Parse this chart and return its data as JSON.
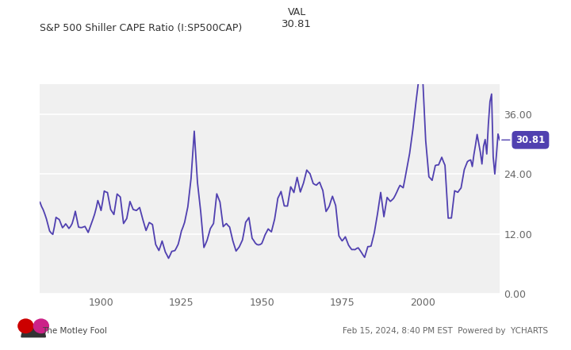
{
  "title_left": "S&P 500 Shiller CAPE Ratio (I:SP500CAP)",
  "title_val_label": "VAL",
  "title_val": "30.81",
  "line_color": "#5040B0",
  "label_color": "#5040B0",
  "background_color": "#ffffff",
  "plot_bg_color": "#f0f0f0",
  "grid_color": "#ffffff",
  "yticks": [
    0.0,
    12.0,
    24.0,
    36.0
  ],
  "ytick_labels": [
    "0.00",
    "12.00",
    "24.00",
    "36.00"
  ],
  "ylim": [
    0,
    42
  ],
  "xlim_start": 1881,
  "xlim_end": 2024,
  "xticks": [
    1900,
    1925,
    1950,
    1975,
    2000
  ],
  "last_value": 30.81,
  "cape_data": [
    [
      1881.0,
      18.36
    ],
    [
      1881.5,
      17.5
    ],
    [
      1882.0,
      16.86
    ],
    [
      1882.5,
      16.0
    ],
    [
      1883.0,
      15.04
    ],
    [
      1883.5,
      13.8
    ],
    [
      1884.0,
      12.6
    ],
    [
      1884.5,
      12.2
    ],
    [
      1885.0,
      11.93
    ],
    [
      1885.5,
      13.5
    ],
    [
      1886.0,
      15.33
    ],
    [
      1886.5,
      15.1
    ],
    [
      1887.0,
      14.9
    ],
    [
      1887.5,
      14.1
    ],
    [
      1888.0,
      13.26
    ],
    [
      1888.5,
      13.6
    ],
    [
      1889.0,
      14.04
    ],
    [
      1889.5,
      13.6
    ],
    [
      1890.0,
      13.11
    ],
    [
      1890.5,
      13.5
    ],
    [
      1891.0,
      14.08
    ],
    [
      1891.5,
      15.2
    ],
    [
      1892.0,
      16.55
    ],
    [
      1892.5,
      15.0
    ],
    [
      1893.0,
      13.39
    ],
    [
      1893.5,
      13.3
    ],
    [
      1894.0,
      13.29
    ],
    [
      1894.5,
      13.4
    ],
    [
      1895.0,
      13.52
    ],
    [
      1895.5,
      12.9
    ],
    [
      1896.0,
      12.31
    ],
    [
      1896.5,
      13.2
    ],
    [
      1897.0,
      14.08
    ],
    [
      1897.5,
      15.0
    ],
    [
      1898.0,
      15.97
    ],
    [
      1898.5,
      17.2
    ],
    [
      1899.0,
      18.7
    ],
    [
      1899.5,
      17.8
    ],
    [
      1900.0,
      16.7
    ],
    [
      1900.5,
      18.5
    ],
    [
      1901.0,
      20.6
    ],
    [
      1901.5,
      20.4
    ],
    [
      1902.0,
      20.3
    ],
    [
      1902.5,
      18.6
    ],
    [
      1903.0,
      16.9
    ],
    [
      1903.5,
      16.4
    ],
    [
      1904.0,
      15.9
    ],
    [
      1904.5,
      17.9
    ],
    [
      1905.0,
      20.0
    ],
    [
      1905.5,
      19.7
    ],
    [
      1906.0,
      19.4
    ],
    [
      1906.5,
      16.8
    ],
    [
      1907.0,
      14.1
    ],
    [
      1907.5,
      14.6
    ],
    [
      1908.0,
      15.1
    ],
    [
      1908.5,
      16.8
    ],
    [
      1909.0,
      18.5
    ],
    [
      1909.5,
      17.7
    ],
    [
      1910.0,
      16.9
    ],
    [
      1910.5,
      16.8
    ],
    [
      1911.0,
      16.7
    ],
    [
      1911.5,
      17.0
    ],
    [
      1912.0,
      17.3
    ],
    [
      1912.5,
      16.1
    ],
    [
      1913.0,
      14.9
    ],
    [
      1913.5,
      13.8
    ],
    [
      1914.0,
      12.7
    ],
    [
      1914.5,
      13.5
    ],
    [
      1915.0,
      14.3
    ],
    [
      1915.5,
      14.1
    ],
    [
      1916.0,
      13.9
    ],
    [
      1916.5,
      11.9
    ],
    [
      1917.0,
      9.9
    ],
    [
      1917.5,
      9.3
    ],
    [
      1918.0,
      8.7
    ],
    [
      1918.5,
      9.6
    ],
    [
      1919.0,
      10.6
    ],
    [
      1919.5,
      9.5
    ],
    [
      1920.0,
      8.4
    ],
    [
      1920.5,
      7.8
    ],
    [
      1921.0,
      7.14
    ],
    [
      1921.5,
      7.8
    ],
    [
      1922.0,
      8.53
    ],
    [
      1922.5,
      8.6
    ],
    [
      1923.0,
      8.7
    ],
    [
      1923.5,
      9.3
    ],
    [
      1924.0,
      9.95
    ],
    [
      1924.5,
      11.2
    ],
    [
      1925.0,
      12.59
    ],
    [
      1925.5,
      13.4
    ],
    [
      1926.0,
      14.34
    ],
    [
      1926.5,
      15.9
    ],
    [
      1927.0,
      17.45
    ],
    [
      1927.5,
      20.2
    ],
    [
      1928.0,
      23.1
    ],
    [
      1928.5,
      27.8
    ],
    [
      1929.0,
      32.56
    ],
    [
      1929.5,
      27.4
    ],
    [
      1930.0,
      22.3
    ],
    [
      1930.5,
      19.4
    ],
    [
      1931.0,
      16.5
    ],
    [
      1931.5,
      12.9
    ],
    [
      1932.0,
      9.3
    ],
    [
      1932.5,
      10.0
    ],
    [
      1933.0,
      10.77
    ],
    [
      1933.5,
      11.9
    ],
    [
      1934.0,
      13.07
    ],
    [
      1934.5,
      13.6
    ],
    [
      1935.0,
      14.11
    ],
    [
      1935.5,
      17.1
    ],
    [
      1936.0,
      20.04
    ],
    [
      1936.5,
      19.2
    ],
    [
      1937.0,
      18.4
    ],
    [
      1937.5,
      15.9
    ],
    [
      1938.0,
      13.47
    ],
    [
      1938.5,
      13.8
    ],
    [
      1939.0,
      14.09
    ],
    [
      1939.5,
      13.7
    ],
    [
      1940.0,
      13.39
    ],
    [
      1940.5,
      12.0
    ],
    [
      1941.0,
      10.64
    ],
    [
      1941.5,
      9.6
    ],
    [
      1942.0,
      8.59
    ],
    [
      1942.5,
      9.0
    ],
    [
      1943.0,
      9.42
    ],
    [
      1943.5,
      10.1
    ],
    [
      1944.0,
      10.81
    ],
    [
      1944.5,
      12.5
    ],
    [
      1945.0,
      14.36
    ],
    [
      1945.5,
      14.8
    ],
    [
      1946.0,
      15.29
    ],
    [
      1946.5,
      13.2
    ],
    [
      1947.0,
      11.14
    ],
    [
      1947.5,
      10.7
    ],
    [
      1948.0,
      10.18
    ],
    [
      1948.5,
      9.9
    ],
    [
      1949.0,
      9.82
    ],
    [
      1949.5,
      9.9
    ],
    [
      1950.0,
      10.1
    ],
    [
      1950.5,
      10.9
    ],
    [
      1951.0,
      11.79
    ],
    [
      1951.5,
      12.4
    ],
    [
      1952.0,
      13.02
    ],
    [
      1952.5,
      12.7
    ],
    [
      1953.0,
      12.44
    ],
    [
      1953.5,
      13.7
    ],
    [
      1954.0,
      14.97
    ],
    [
      1954.5,
      17.0
    ],
    [
      1955.0,
      19.15
    ],
    [
      1955.5,
      19.8
    ],
    [
      1956.0,
      20.51
    ],
    [
      1956.5,
      19.1
    ],
    [
      1957.0,
      17.62
    ],
    [
      1957.5,
      17.6
    ],
    [
      1958.0,
      17.59
    ],
    [
      1958.5,
      19.5
    ],
    [
      1959.0,
      21.44
    ],
    [
      1959.5,
      20.9
    ],
    [
      1960.0,
      20.29
    ],
    [
      1960.5,
      21.8
    ],
    [
      1961.0,
      23.33
    ],
    [
      1961.5,
      21.9
    ],
    [
      1962.0,
      20.4
    ],
    [
      1962.5,
      21.3
    ],
    [
      1963.0,
      22.22
    ],
    [
      1963.5,
      23.5
    ],
    [
      1964.0,
      24.79
    ],
    [
      1964.5,
      24.4
    ],
    [
      1965.0,
      24.07
    ],
    [
      1965.5,
      23.1
    ],
    [
      1966.0,
      22.11
    ],
    [
      1966.5,
      21.9
    ],
    [
      1967.0,
      21.77
    ],
    [
      1967.5,
      22.1
    ],
    [
      1968.0,
      22.36
    ],
    [
      1968.5,
      21.5
    ],
    [
      1969.0,
      20.7
    ],
    [
      1969.5,
      18.6
    ],
    [
      1970.0,
      16.5
    ],
    [
      1970.5,
      17.0
    ],
    [
      1971.0,
      17.57
    ],
    [
      1971.5,
      18.6
    ],
    [
      1972.0,
      19.55
    ],
    [
      1972.5,
      18.6
    ],
    [
      1973.0,
      17.68
    ],
    [
      1973.5,
      14.7
    ],
    [
      1974.0,
      11.62
    ],
    [
      1974.5,
      11.1
    ],
    [
      1975.0,
      10.62
    ],
    [
      1975.5,
      11.0
    ],
    [
      1976.0,
      11.44
    ],
    [
      1976.5,
      10.6
    ],
    [
      1977.0,
      9.77
    ],
    [
      1977.5,
      9.3
    ],
    [
      1978.0,
      8.88
    ],
    [
      1978.5,
      8.9
    ],
    [
      1979.0,
      8.87
    ],
    [
      1979.5,
      9.1
    ],
    [
      1980.0,
      9.24
    ],
    [
      1980.5,
      8.8
    ],
    [
      1981.0,
      8.32
    ],
    [
      1981.5,
      7.8
    ],
    [
      1982.0,
      7.33
    ],
    [
      1982.5,
      8.4
    ],
    [
      1983.0,
      9.48
    ],
    [
      1983.5,
      9.5
    ],
    [
      1984.0,
      9.59
    ],
    [
      1984.5,
      10.9
    ],
    [
      1985.0,
      12.22
    ],
    [
      1985.5,
      14.1
    ],
    [
      1986.0,
      16.0
    ],
    [
      1986.5,
      18.2
    ],
    [
      1987.0,
      20.32
    ],
    [
      1987.5,
      17.9
    ],
    [
      1988.0,
      15.46
    ],
    [
      1988.5,
      17.4
    ],
    [
      1989.0,
      19.32
    ],
    [
      1989.5,
      18.9
    ],
    [
      1990.0,
      18.52
    ],
    [
      1990.5,
      18.8
    ],
    [
      1991.0,
      19.12
    ],
    [
      1991.5,
      19.7
    ],
    [
      1992.0,
      20.37
    ],
    [
      1992.5,
      21.1
    ],
    [
      1993.0,
      21.73
    ],
    [
      1993.5,
      21.5
    ],
    [
      1994.0,
      21.25
    ],
    [
      1994.5,
      22.9
    ],
    [
      1995.0,
      24.66
    ],
    [
      1995.5,
      26.4
    ],
    [
      1996.0,
      28.11
    ],
    [
      1996.5,
      30.5
    ],
    [
      1997.0,
      32.86
    ],
    [
      1997.5,
      35.7
    ],
    [
      1998.0,
      38.51
    ],
    [
      1998.5,
      41.1
    ],
    [
      1999.0,
      43.77
    ],
    [
      1999.5,
      44.2
    ],
    [
      2000.0,
      44.2
    ],
    [
      2000.5,
      37.3
    ],
    [
      2001.0,
      30.66
    ],
    [
      2001.5,
      27.1
    ],
    [
      2002.0,
      23.44
    ],
    [
      2002.5,
      23.1
    ],
    [
      2003.0,
      22.73
    ],
    [
      2003.5,
      24.2
    ],
    [
      2004.0,
      25.7
    ],
    [
      2004.5,
      25.8
    ],
    [
      2005.0,
      25.82
    ],
    [
      2005.5,
      26.6
    ],
    [
      2006.0,
      27.35
    ],
    [
      2006.5,
      26.5
    ],
    [
      2007.0,
      25.75
    ],
    [
      2007.5,
      20.5
    ],
    [
      2008.0,
      15.17
    ],
    [
      2008.5,
      15.2
    ],
    [
      2009.0,
      15.2
    ],
    [
      2009.5,
      17.9
    ],
    [
      2010.0,
      20.65
    ],
    [
      2010.5,
      20.5
    ],
    [
      2011.0,
      20.34
    ],
    [
      2011.5,
      20.8
    ],
    [
      2012.0,
      21.21
    ],
    [
      2012.5,
      23.0
    ],
    [
      2013.0,
      24.86
    ],
    [
      2013.5,
      25.7
    ],
    [
      2014.0,
      26.49
    ],
    [
      2014.5,
      26.7
    ],
    [
      2015.0,
      26.82
    ],
    [
      2015.5,
      25.5
    ],
    [
      2016.0,
      27.89
    ],
    [
      2016.5,
      29.8
    ],
    [
      2017.0,
      31.91
    ],
    [
      2017.5,
      30.1
    ],
    [
      2018.0,
      28.37
    ],
    [
      2018.5,
      26.0
    ],
    [
      2019.0,
      29.57
    ],
    [
      2019.5,
      30.9
    ],
    [
      2020.0,
      28.0
    ],
    [
      2020.5,
      34.0
    ],
    [
      2021.0,
      38.49
    ],
    [
      2021.5,
      40.0
    ],
    [
      2022.0,
      27.38
    ],
    [
      2022.5,
      24.0
    ],
    [
      2023.0,
      27.8
    ],
    [
      2023.5,
      32.0
    ],
    [
      2024.0,
      30.81
    ]
  ]
}
